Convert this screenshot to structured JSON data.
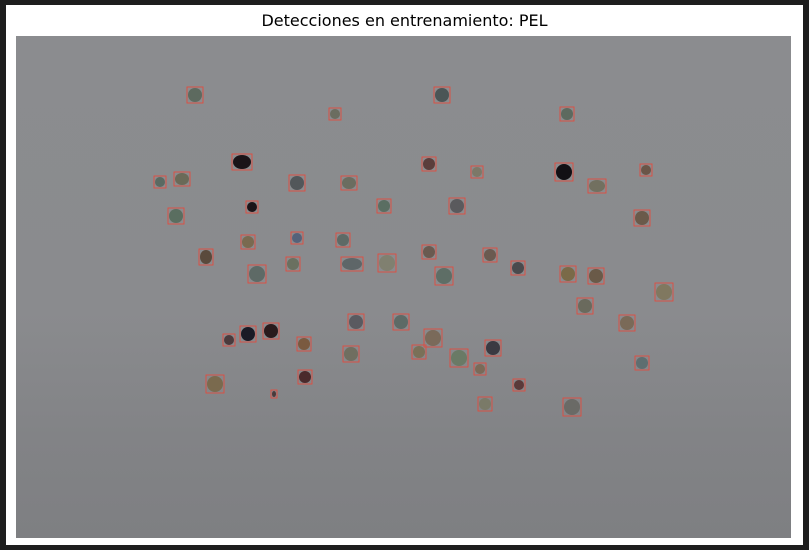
{
  "title": "Detecciones en entrenamiento: PEL",
  "colors": {
    "box_stroke": "#e24c3f",
    "background_photo": "#8a8b8e",
    "frame": "#1e1e1e"
  },
  "detections": [
    {
      "id": 1,
      "seed_color": "#5d6a5f"
    },
    {
      "id": 2,
      "seed_color": "#4a5556"
    },
    {
      "id": 3,
      "seed_color": "#6b6d60"
    },
    {
      "id": 4,
      "seed_color": "#5d6a5f"
    },
    {
      "id": 5,
      "seed_color": "#1a1418"
    },
    {
      "id": 6,
      "seed_color": "#5a3e3c"
    },
    {
      "id": 7,
      "seed_color": "#7d7868"
    },
    {
      "id": 8,
      "seed_color": "#121014"
    },
    {
      "id": 9,
      "seed_color": "#6a5548"
    },
    {
      "id": 10,
      "seed_color": "#5a6a62"
    },
    {
      "id": 11,
      "seed_color": "#6a6a58"
    },
    {
      "id": 12,
      "seed_color": "#52575a"
    },
    {
      "id": 13,
      "seed_color": "#6b6d60"
    },
    {
      "id": 14,
      "seed_color": "#727060"
    },
    {
      "id": 15,
      "seed_color": "#5a5a5d"
    },
    {
      "id": 16,
      "seed_color": "#5a6e62"
    },
    {
      "id": 17,
      "seed_color": "#1c1418"
    },
    {
      "id": 18,
      "seed_color": "#5a6e60"
    },
    {
      "id": 19,
      "seed_color": "#6a5a4a"
    },
    {
      "id": 20,
      "seed_color": "#55627a"
    },
    {
      "id": 21,
      "seed_color": "#7a6a50"
    },
    {
      "id": 22,
      "seed_color": "#5e6a66"
    },
    {
      "id": 23,
      "seed_color": "#6a5a50"
    },
    {
      "id": 24,
      "seed_color": "#6a5a50"
    },
    {
      "id": 25,
      "seed_color": "#5a4a3c"
    },
    {
      "id": 26,
      "seed_color": "#6a7060"
    },
    {
      "id": 27,
      "seed_color": "#5e6668"
    },
    {
      "id": 28,
      "seed_color": "#808070"
    },
    {
      "id": 29,
      "seed_color": "#4a4a4d"
    },
    {
      "id": 30,
      "seed_color": "#5e6a66"
    },
    {
      "id": 31,
      "seed_color": "#5e6e66"
    },
    {
      "id": 32,
      "seed_color": "#7a6a48"
    },
    {
      "id": 33,
      "seed_color": "#6a5a48"
    },
    {
      "id": 34,
      "seed_color": "#807860"
    },
    {
      "id": 35,
      "seed_color": "#6a6a5d"
    },
    {
      "id": 36,
      "seed_color": "#5a5a60"
    },
    {
      "id": 37,
      "seed_color": "#5e6a66"
    },
    {
      "id": 38,
      "seed_color": "#7a6a58"
    },
    {
      "id": 39,
      "seed_color": "#4a3a3c"
    },
    {
      "id": 40,
      "seed_color": "#1a1a25"
    },
    {
      "id": 41,
      "seed_color": "#2a1a1c"
    },
    {
      "id": 42,
      "seed_color": "#7a5a40"
    },
    {
      "id": 43,
      "seed_color": "#7a6a5a"
    },
    {
      "id": 44,
      "seed_color": "#3a3a42"
    },
    {
      "id": 45,
      "seed_color": "#706e60"
    },
    {
      "id": 46,
      "seed_color": "#7a7058"
    },
    {
      "id": 47,
      "seed_color": "#6a7a66"
    },
    {
      "id": 48,
      "seed_color": "#5e6e70"
    },
    {
      "id": 49,
      "seed_color": "#7a6a58"
    },
    {
      "id": 50,
      "seed_color": "#4a2a2c"
    },
    {
      "id": 51,
      "seed_color": "#7a6a4e"
    },
    {
      "id": 52,
      "seed_color": "#5a3a3a"
    },
    {
      "id": 53,
      "seed_color": "#7a7a68"
    },
    {
      "id": 54,
      "seed_color": "#6a6a66"
    },
    {
      "id": 55,
      "seed_color": "#4a3a3c"
    },
    {
      "id": 56,
      "seed_color": "#6a6a5a"
    },
    {
      "id": 57,
      "seed_color": "#6e7a60"
    },
    {
      "id": 58,
      "seed_color": "#2a1a1c"
    },
    {
      "id": 59,
      "seed_color": "#7a7a6a"
    },
    {
      "id": 60,
      "seed_color": "#2a1a1c"
    }
  ]
}
